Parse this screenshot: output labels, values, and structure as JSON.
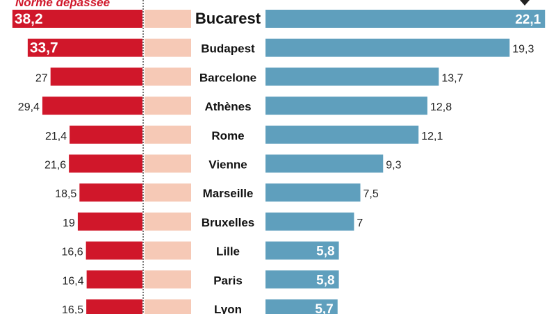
{
  "chart_data": {
    "type": "bar",
    "annotation": "Norme dépassée",
    "categories": [
      "Bucarest",
      "Budapest",
      "Barcelone",
      "Athènes",
      "Rome",
      "Vienne",
      "Marseille",
      "Bruxelles",
      "Lille",
      "Paris",
      "Lyon"
    ],
    "series": [
      {
        "values": [
          38.2,
          33.7,
          27,
          29.4,
          21.4,
          21.6,
          18.5,
          19,
          16.6,
          16.4,
          16.5
        ],
        "labels": [
          "38,2",
          "33,7",
          "27",
          "29,4",
          "21,4",
          "21,6",
          "18,5",
          "19",
          "16,6",
          "16,4",
          "16,5"
        ]
      },
      {
        "values": [
          22.1,
          19.3,
          13.7,
          12.8,
          12.1,
          9.3,
          7.5,
          7,
          5.8,
          5.8,
          5.7
        ],
        "labels": [
          "22,1",
          "19,3",
          "13,7",
          "12,8",
          "12,1",
          "9,3",
          "7,5",
          "7",
          "5,8",
          "5,8",
          "5,7"
        ]
      }
    ],
    "colors": {
      "left": "#d0172a",
      "threshold": "#f6c9b6",
      "right": "#5f9fbd",
      "text": "#222222"
    }
  }
}
